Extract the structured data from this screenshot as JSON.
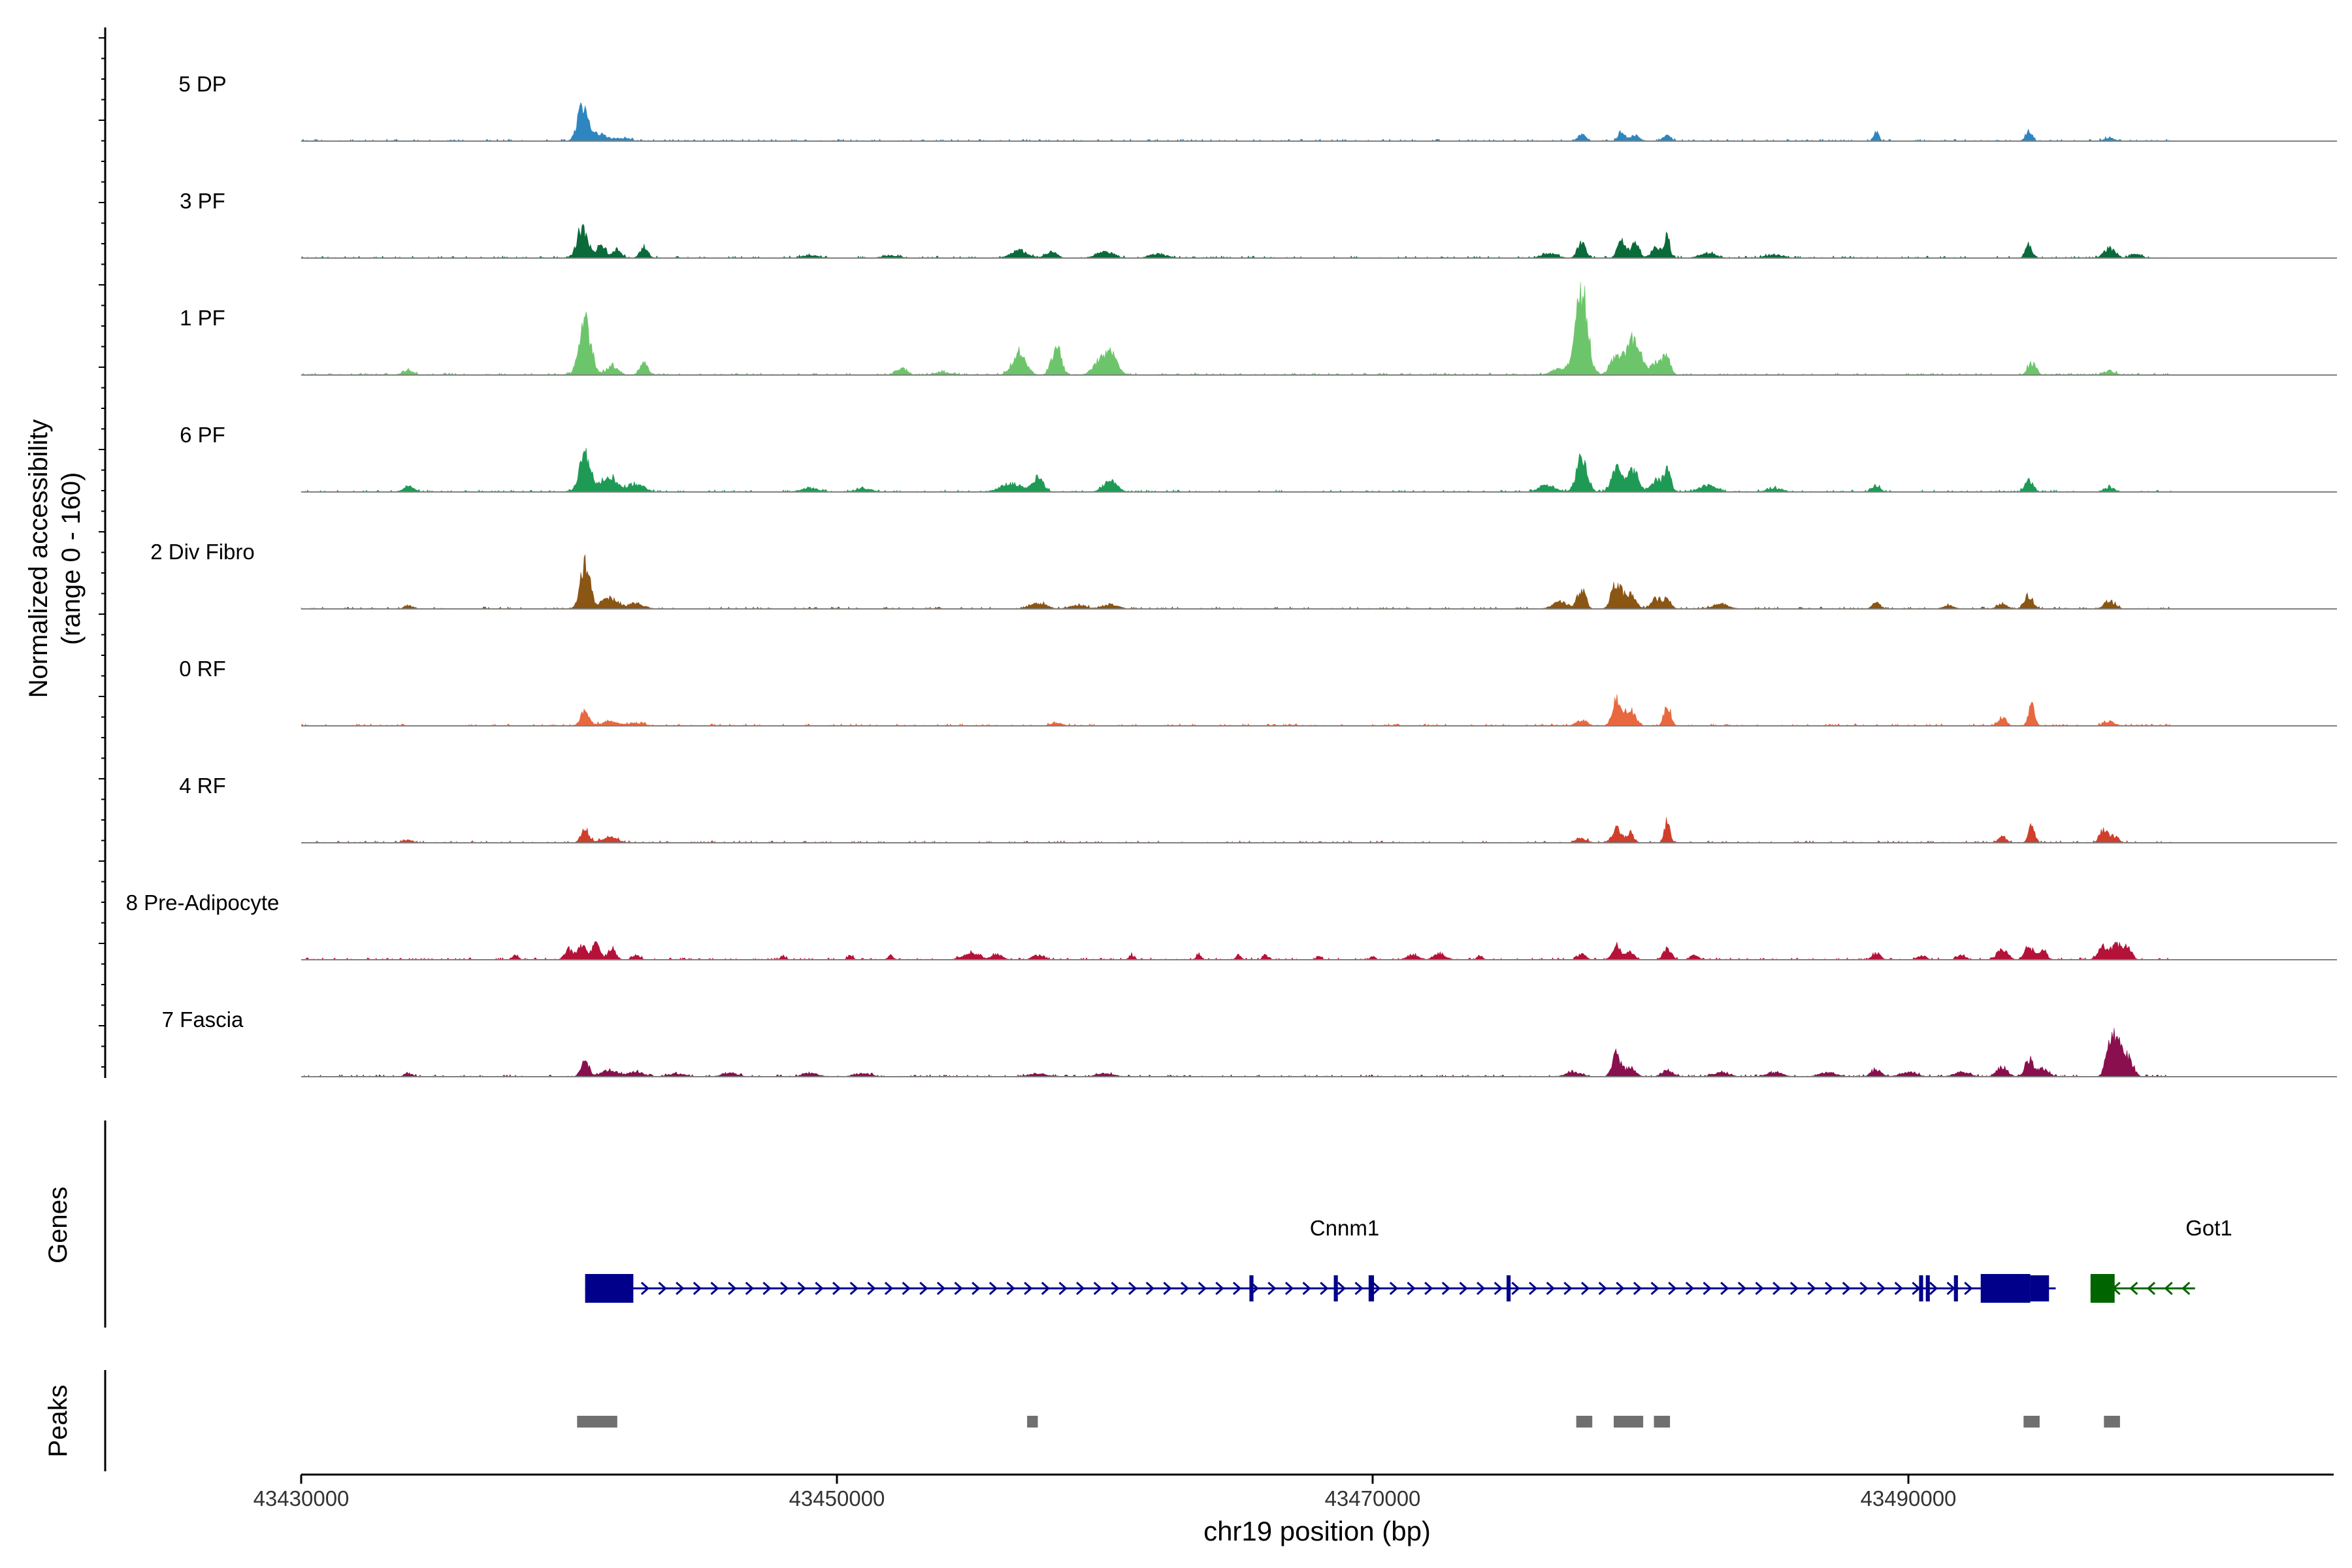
{
  "chart_data": {
    "type": "coverage-track",
    "ylabel": "Normalized accessibility",
    "ylabel_range": "(range 0 - 160)",
    "ylim": [
      0,
      160
    ],
    "xlabel": "chr19 position (bp)",
    "xlim": [
      43430000,
      43506000
    ],
    "x_ticks": [
      43430000,
      43450000,
      43470000,
      43490000
    ],
    "tick_labels": [
      "43430000",
      "43450000",
      "43470000",
      "43490000"
    ],
    "panel_labels": {
      "genes": "Genes",
      "peaks": "Peaks"
    },
    "tracks": [
      {
        "name": "5 DP",
        "color": "#2e86c1",
        "peaks": [
          [
            43440500,
            60,
            180
          ],
          [
            43441000,
            15,
            350
          ],
          [
            43442000,
            5,
            300
          ],
          [
            43477800,
            12,
            150
          ],
          [
            43479300,
            18,
            120
          ],
          [
            43479800,
            12,
            150
          ],
          [
            43481000,
            10,
            150
          ],
          [
            43488800,
            15,
            100
          ],
          [
            43494500,
            20,
            120
          ],
          [
            43497500,
            5,
            200
          ]
        ]
      },
      {
        "name": "3 PF",
        "color": "#0b6a3a",
        "peaks": [
          [
            43440500,
            55,
            200
          ],
          [
            43441200,
            20,
            180
          ],
          [
            43441800,
            15,
            150
          ],
          [
            43442800,
            18,
            150
          ],
          [
            43449000,
            5,
            300
          ],
          [
            43452000,
            5,
            300
          ],
          [
            43456800,
            15,
            300
          ],
          [
            43458000,
            12,
            200
          ],
          [
            43460000,
            12,
            300
          ],
          [
            43462000,
            8,
            300
          ],
          [
            43476600,
            8,
            300
          ],
          [
            43477800,
            28,
            150
          ],
          [
            43479300,
            32,
            150
          ],
          [
            43479800,
            28,
            150
          ],
          [
            43480600,
            18,
            200
          ],
          [
            43481000,
            38,
            100
          ],
          [
            43482500,
            8,
            300
          ],
          [
            43485000,
            6,
            300
          ],
          [
            43494500,
            25,
            120
          ],
          [
            43497500,
            18,
            200
          ],
          [
            43498500,
            8,
            200
          ]
        ]
      },
      {
        "name": "1 PF",
        "color": "#6cc56a",
        "peaks": [
          [
            43434000,
            8,
            200
          ],
          [
            43440600,
            95,
            220
          ],
          [
            43441600,
            18,
            200
          ],
          [
            43442800,
            22,
            150
          ],
          [
            43452400,
            12,
            200
          ],
          [
            43454000,
            5,
            300
          ],
          [
            43456800,
            40,
            250
          ],
          [
            43458200,
            48,
            180
          ],
          [
            43459800,
            20,
            250
          ],
          [
            43460200,
            35,
            250
          ],
          [
            43477000,
            12,
            300
          ],
          [
            43477800,
            150,
            220
          ],
          [
            43479100,
            35,
            220
          ],
          [
            43479600,
            45,
            180
          ],
          [
            43479900,
            50,
            180
          ],
          [
            43480600,
            25,
            200
          ],
          [
            43481000,
            33,
            130
          ],
          [
            43494600,
            22,
            150
          ],
          [
            43497500,
            8,
            200
          ]
        ]
      },
      {
        "name": "6 PF",
        "color": "#1f9a55",
        "peaks": [
          [
            43434000,
            10,
            200
          ],
          [
            43440600,
            75,
            200
          ],
          [
            43441500,
            28,
            300
          ],
          [
            43442500,
            15,
            300
          ],
          [
            43449000,
            8,
            300
          ],
          [
            43451000,
            6,
            300
          ],
          [
            43456500,
            15,
            400
          ],
          [
            43457500,
            25,
            200
          ],
          [
            43460200,
            20,
            250
          ],
          [
            43476500,
            12,
            300
          ],
          [
            43477800,
            60,
            200
          ],
          [
            43479100,
            45,
            180
          ],
          [
            43479700,
            40,
            200
          ],
          [
            43480600,
            22,
            200
          ],
          [
            43481000,
            35,
            130
          ],
          [
            43482500,
            12,
            300
          ],
          [
            43485000,
            6,
            300
          ],
          [
            43488800,
            12,
            150
          ],
          [
            43494500,
            22,
            150
          ],
          [
            43497500,
            8,
            200
          ]
        ]
      },
      {
        "name": "2 Div Fibro",
        "color": "#8b5514",
        "peaks": [
          [
            43434000,
            6,
            150
          ],
          [
            43440600,
            80,
            180
          ],
          [
            43441500,
            20,
            300
          ],
          [
            43442500,
            10,
            300
          ],
          [
            43457500,
            10,
            300
          ],
          [
            43459000,
            6,
            300
          ],
          [
            43460200,
            8,
            300
          ],
          [
            43477000,
            12,
            300
          ],
          [
            43477800,
            35,
            150
          ],
          [
            43479100,
            45,
            180
          ],
          [
            43479600,
            28,
            200
          ],
          [
            43480600,
            18,
            200
          ],
          [
            43481000,
            15,
            150
          ],
          [
            43483000,
            8,
            300
          ],
          [
            43488800,
            12,
            150
          ],
          [
            43491500,
            6,
            200
          ],
          [
            43493500,
            8,
            200
          ],
          [
            43494500,
            25,
            150
          ],
          [
            43497500,
            15,
            200
          ]
        ]
      },
      {
        "name": "0 RF",
        "color": "#e8683f",
        "peaks": [
          [
            43440600,
            30,
            150
          ],
          [
            43441500,
            8,
            300
          ],
          [
            43442500,
            5,
            300
          ],
          [
            43458200,
            6,
            200
          ],
          [
            43477800,
            10,
            200
          ],
          [
            43479100,
            48,
            150
          ],
          [
            43479600,
            32,
            180
          ],
          [
            43481000,
            38,
            120
          ],
          [
            43493500,
            15,
            150
          ],
          [
            43494600,
            35,
            120
          ],
          [
            43497500,
            8,
            200
          ]
        ]
      },
      {
        "name": "4 RF",
        "color": "#d03e2c",
        "peaks": [
          [
            43434000,
            6,
            150
          ],
          [
            43440600,
            25,
            150
          ],
          [
            43441500,
            10,
            300
          ],
          [
            43477800,
            8,
            200
          ],
          [
            43479100,
            30,
            150
          ],
          [
            43479600,
            18,
            150
          ],
          [
            43481000,
            42,
            100
          ],
          [
            43493500,
            12,
            150
          ],
          [
            43494600,
            30,
            120
          ],
          [
            43497300,
            25,
            150
          ],
          [
            43497700,
            12,
            150
          ]
        ]
      },
      {
        "name": "8 Pre-Adipocyte",
        "color": "#b5123a",
        "peaks": [
          [
            43438000,
            10,
            100
          ],
          [
            43440000,
            20,
            150
          ],
          [
            43440500,
            25,
            150
          ],
          [
            43441000,
            28,
            150
          ],
          [
            43441600,
            22,
            150
          ],
          [
            43442500,
            8,
            150
          ],
          [
            43448000,
            6,
            100
          ],
          [
            43450500,
            8,
            100
          ],
          [
            43452000,
            8,
            100
          ],
          [
            43455000,
            12,
            300
          ],
          [
            43456000,
            10,
            200
          ],
          [
            43457500,
            8,
            200
          ],
          [
            43461000,
            8,
            100
          ],
          [
            43463500,
            8,
            100
          ],
          [
            43465000,
            8,
            100
          ],
          [
            43466000,
            8,
            100
          ],
          [
            43468000,
            6,
            100
          ],
          [
            43470000,
            6,
            100
          ],
          [
            43471500,
            10,
            200
          ],
          [
            43472500,
            12,
            200
          ],
          [
            43474000,
            8,
            100
          ],
          [
            43477800,
            10,
            150
          ],
          [
            43479100,
            30,
            150
          ],
          [
            43479600,
            15,
            150
          ],
          [
            43481000,
            20,
            150
          ],
          [
            43482000,
            8,
            150
          ],
          [
            43488800,
            12,
            150
          ],
          [
            43490500,
            8,
            150
          ],
          [
            43492000,
            8,
            150
          ],
          [
            43493500,
            18,
            200
          ],
          [
            43494500,
            25,
            150
          ],
          [
            43495000,
            20,
            150
          ],
          [
            43497300,
            25,
            200
          ],
          [
            43497800,
            28,
            150
          ],
          [
            43498200,
            20,
            150
          ],
          [
            43500500,
            6,
            100
          ]
        ]
      },
      {
        "name": "7 Fascia",
        "color": "#8a0f4e",
        "peaks": [
          [
            43434000,
            6,
            150
          ],
          [
            43440600,
            28,
            150
          ],
          [
            43441500,
            12,
            300
          ],
          [
            43442500,
            8,
            300
          ],
          [
            43444000,
            6,
            300
          ],
          [
            43446000,
            6,
            300
          ],
          [
            43449000,
            6,
            300
          ],
          [
            43451000,
            6,
            300
          ],
          [
            43457500,
            6,
            300
          ],
          [
            43460000,
            6,
            300
          ],
          [
            43477500,
            8,
            300
          ],
          [
            43479100,
            40,
            150
          ],
          [
            43479600,
            15,
            200
          ],
          [
            43481000,
            12,
            200
          ],
          [
            43483000,
            8,
            300
          ],
          [
            43485000,
            8,
            300
          ],
          [
            43487000,
            8,
            300
          ],
          [
            43488800,
            12,
            200
          ],
          [
            43490000,
            8,
            300
          ],
          [
            43492000,
            8,
            300
          ],
          [
            43493500,
            18,
            200
          ],
          [
            43494500,
            32,
            150
          ],
          [
            43495000,
            15,
            200
          ],
          [
            43497500,
            50,
            150
          ],
          [
            43497800,
            70,
            150
          ],
          [
            43498200,
            35,
            180
          ]
        ]
      }
    ],
    "genes": [
      {
        "name": "Cnnm1",
        "strand": "+",
        "color": "#00008b",
        "start": 43440600,
        "end": 43493300,
        "exons": [
          [
            43440600,
            43442400
          ],
          [
            43465400,
            43465550
          ],
          [
            43468550,
            43468700
          ],
          [
            43469850,
            43470050
          ],
          [
            43475000,
            43475150
          ],
          [
            43490400,
            43490550
          ],
          [
            43490650,
            43490800
          ],
          [
            43491700,
            43491850
          ],
          [
            43492700,
            43494550
          ],
          [
            43494550,
            43495250
          ]
        ]
      },
      {
        "name": "Got1",
        "strand": "-",
        "color": "#006400",
        "start": 43496800,
        "end": 43500700,
        "exons": [
          [
            43496800,
            43497700
          ]
        ]
      }
    ],
    "peak_regions": [
      [
        43440300,
        43441800
      ],
      [
        43457100,
        43457500
      ],
      [
        43477600,
        43478200
      ],
      [
        43479000,
        43480100
      ],
      [
        43480500,
        43481100
      ],
      [
        43494300,
        43494900
      ],
      [
        43497300,
        43497900
      ]
    ]
  }
}
